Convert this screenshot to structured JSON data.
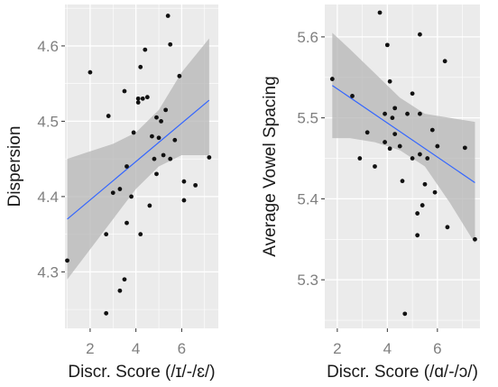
{
  "chart_data": [
    {
      "type": "scatter",
      "xlabel": "Discr. Score (/ɪ/-/ɛ/)",
      "ylabel": "Dispersion",
      "xlim": [
        0.9,
        7.6
      ],
      "ylim": [
        4.225,
        4.655
      ],
      "xticks": [
        2,
        4,
        6
      ],
      "yticks": [
        4.3,
        4.4,
        4.5,
        4.6
      ],
      "grid": true,
      "points": [
        {
          "x": 1.0,
          "y": 4.315
        },
        {
          "x": 2.0,
          "y": 4.565
        },
        {
          "x": 2.7,
          "y": 4.245
        },
        {
          "x": 2.7,
          "y": 4.35
        },
        {
          "x": 2.8,
          "y": 4.507
        },
        {
          "x": 3.0,
          "y": 4.405
        },
        {
          "x": 3.3,
          "y": 4.275
        },
        {
          "x": 3.3,
          "y": 4.41
        },
        {
          "x": 3.5,
          "y": 4.54
        },
        {
          "x": 3.5,
          "y": 4.29
        },
        {
          "x": 3.6,
          "y": 4.44
        },
        {
          "x": 3.6,
          "y": 4.365
        },
        {
          "x": 3.8,
          "y": 4.4
        },
        {
          "x": 3.9,
          "y": 4.485
        },
        {
          "x": 4.1,
          "y": 4.53
        },
        {
          "x": 4.1,
          "y": 4.525
        },
        {
          "x": 4.2,
          "y": 4.35
        },
        {
          "x": 4.2,
          "y": 4.572
        },
        {
          "x": 4.3,
          "y": 4.53
        },
        {
          "x": 4.4,
          "y": 4.595
        },
        {
          "x": 4.5,
          "y": 4.532
        },
        {
          "x": 4.6,
          "y": 4.388
        },
        {
          "x": 4.7,
          "y": 4.48
        },
        {
          "x": 4.8,
          "y": 4.45
        },
        {
          "x": 4.9,
          "y": 4.505
        },
        {
          "x": 4.9,
          "y": 4.43
        },
        {
          "x": 5.0,
          "y": 4.478
        },
        {
          "x": 5.1,
          "y": 4.5
        },
        {
          "x": 5.2,
          "y": 4.455
        },
        {
          "x": 5.3,
          "y": 4.515
        },
        {
          "x": 5.4,
          "y": 4.64
        },
        {
          "x": 5.5,
          "y": 4.602
        },
        {
          "x": 5.5,
          "y": 4.45
        },
        {
          "x": 5.7,
          "y": 4.475
        },
        {
          "x": 5.9,
          "y": 4.56
        },
        {
          "x": 6.1,
          "y": 4.42
        },
        {
          "x": 6.1,
          "y": 4.395
        },
        {
          "x": 6.6,
          "y": 4.415
        },
        {
          "x": 7.2,
          "y": 4.452
        }
      ],
      "fit": {
        "x": [
          1.0,
          7.2
        ],
        "y": [
          4.37,
          4.528
        ]
      },
      "band": {
        "x": [
          1.0,
          2.0,
          3.0,
          4.0,
          5.0,
          6.0,
          7.2
        ],
        "lower": [
          4.29,
          4.33,
          4.37,
          4.41,
          4.44,
          4.455,
          4.455
        ],
        "upper": [
          4.45,
          4.46,
          4.47,
          4.485,
          4.515,
          4.565,
          4.61
        ]
      },
      "colors": {
        "panel": "#ebebeb",
        "grid": "#ffffff",
        "point": "#111111",
        "line": "#3366ff",
        "band": "#b3b3b3"
      }
    },
    {
      "type": "scatter",
      "xlabel": "Discr. Score (/ɑ/-/ɔ/)",
      "ylabel": "Average Vowel Spacing",
      "xlim": [
        1.5,
        7.7
      ],
      "ylim": [
        5.24,
        5.64
      ],
      "xticks": [
        2,
        4,
        6
      ],
      "yticks": [
        5.3,
        5.4,
        5.5,
        5.6
      ],
      "grid": true,
      "points": [
        {
          "x": 1.8,
          "y": 5.548
        },
        {
          "x": 2.6,
          "y": 5.527
        },
        {
          "x": 2.9,
          "y": 5.45
        },
        {
          "x": 3.2,
          "y": 5.482
        },
        {
          "x": 3.5,
          "y": 5.44
        },
        {
          "x": 3.7,
          "y": 5.63
        },
        {
          "x": 3.9,
          "y": 5.505
        },
        {
          "x": 3.9,
          "y": 5.47
        },
        {
          "x": 4.0,
          "y": 5.59
        },
        {
          "x": 4.1,
          "y": 5.545
        },
        {
          "x": 4.1,
          "y": 5.462
        },
        {
          "x": 4.2,
          "y": 5.5
        },
        {
          "x": 4.3,
          "y": 5.512
        },
        {
          "x": 4.3,
          "y": 5.48
        },
        {
          "x": 4.5,
          "y": 5.465
        },
        {
          "x": 4.6,
          "y": 5.422
        },
        {
          "x": 4.7,
          "y": 5.258
        },
        {
          "x": 4.8,
          "y": 5.505
        },
        {
          "x": 5.0,
          "y": 5.45
        },
        {
          "x": 5.0,
          "y": 5.53
        },
        {
          "x": 5.2,
          "y": 5.355
        },
        {
          "x": 5.2,
          "y": 5.382
        },
        {
          "x": 5.3,
          "y": 5.603
        },
        {
          "x": 5.3,
          "y": 5.505
        },
        {
          "x": 5.3,
          "y": 5.455
        },
        {
          "x": 5.4,
          "y": 5.392
        },
        {
          "x": 5.5,
          "y": 5.418
        },
        {
          "x": 5.6,
          "y": 5.45
        },
        {
          "x": 5.8,
          "y": 5.485
        },
        {
          "x": 5.9,
          "y": 5.408
        },
        {
          "x": 6.0,
          "y": 5.465
        },
        {
          "x": 6.3,
          "y": 5.57
        },
        {
          "x": 6.4,
          "y": 5.365
        },
        {
          "x": 7.1,
          "y": 5.463
        },
        {
          "x": 7.5,
          "y": 5.35
        }
      ],
      "fit": {
        "x": [
          1.8,
          7.5
        ],
        "y": [
          5.54,
          5.42
        ]
      },
      "band": {
        "x": [
          1.8,
          2.5,
          3.5,
          4.5,
          5.5,
          6.5,
          7.5
        ],
        "lower": [
          5.475,
          5.475,
          5.47,
          5.46,
          5.44,
          5.395,
          5.345
        ],
        "upper": [
          5.605,
          5.585,
          5.555,
          5.525,
          5.505,
          5.5,
          5.495
        ]
      },
      "colors": {
        "panel": "#ebebeb",
        "grid": "#ffffff",
        "point": "#111111",
        "line": "#3366ff",
        "band": "#b3b3b3"
      }
    }
  ]
}
